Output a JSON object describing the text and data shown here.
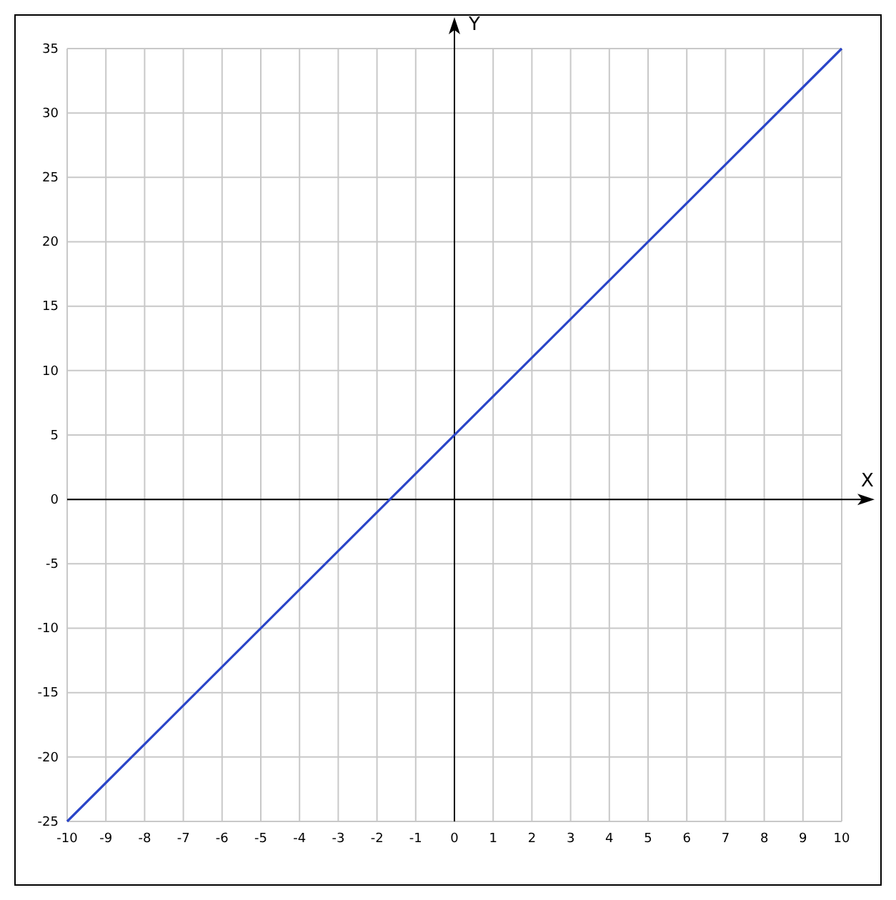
{
  "chart_data": {
    "type": "line",
    "xlabel": "X",
    "ylabel": "Y",
    "x": [
      -10,
      10
    ],
    "series": [
      {
        "color": "#2a45c8",
        "values": [
          -25,
          35
        ]
      }
    ],
    "xlim": [
      -10,
      10
    ],
    "ylim": [
      -25,
      35
    ],
    "xticks": [
      -10,
      -9,
      -8,
      -7,
      -6,
      -5,
      -4,
      -3,
      -2,
      -1,
      0,
      1,
      2,
      3,
      4,
      5,
      6,
      7,
      8,
      9,
      10
    ],
    "yticks": [
      -25,
      -20,
      -15,
      -10,
      -5,
      0,
      5,
      10,
      15,
      20,
      25,
      30,
      35
    ],
    "grid": true,
    "marker": "none",
    "line_style": "solid"
  }
}
